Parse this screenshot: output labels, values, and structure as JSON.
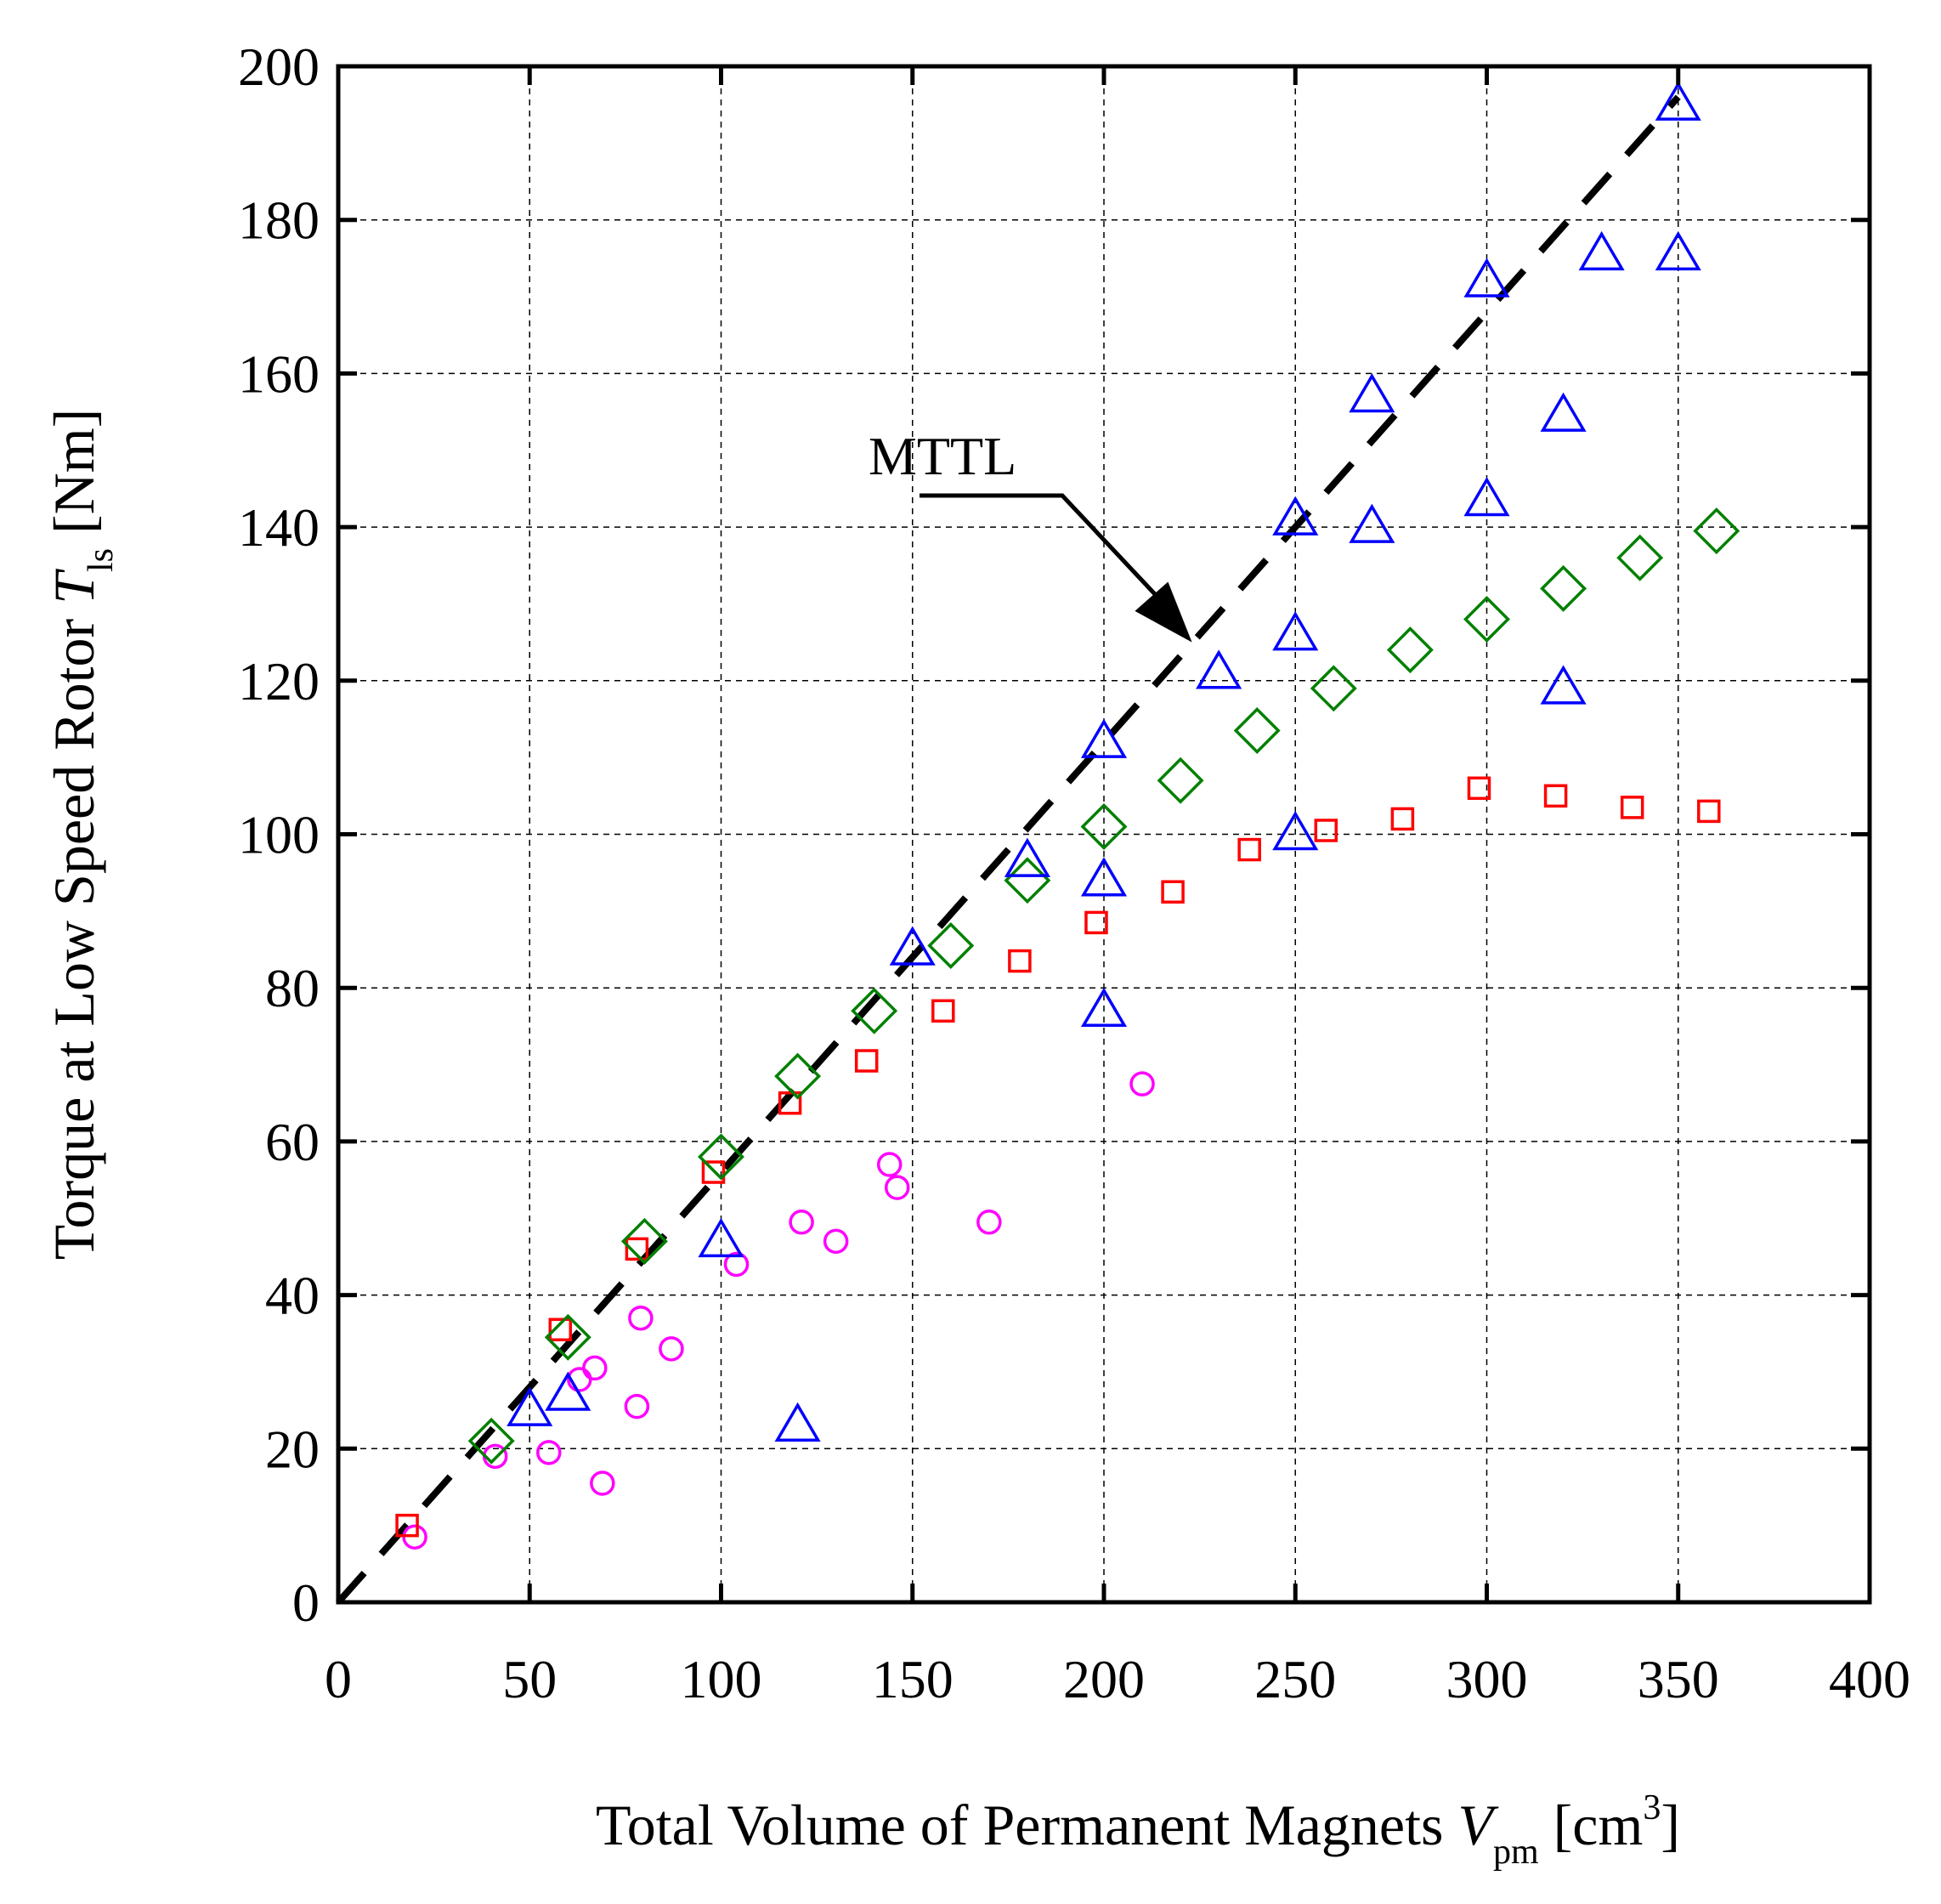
{
  "chart_data": {
    "type": "scatter",
    "xlabel": {
      "prefix": "Total Volume of Permanent Magnets ",
      "var": "V",
      "sub": "pm",
      "unit_open": " [cm",
      "sup": "3",
      "unit_close": "]"
    },
    "ylabel": {
      "prefix": "Torque at Low Speed Rotor ",
      "var": "T",
      "sub": "ls",
      "unit": " [Nm]"
    },
    "xlim": [
      0,
      400
    ],
    "ylim": [
      0,
      200
    ],
    "x_ticks": [
      0,
      50,
      100,
      150,
      200,
      250,
      300,
      350,
      400
    ],
    "y_ticks": [
      0,
      20,
      40,
      60,
      80,
      100,
      120,
      140,
      160,
      180,
      200
    ],
    "grid": true,
    "series": [
      {
        "name": "circles",
        "marker": "circle",
        "color": "#ff00ff",
        "points": [
          [
            20,
            8.5
          ],
          [
            41,
            19
          ],
          [
            55,
            19.5
          ],
          [
            63,
            29
          ],
          [
            67,
            30.5
          ],
          [
            69,
            15.5
          ],
          [
            78,
            25.5
          ],
          [
            79,
            37
          ],
          [
            87,
            33
          ],
          [
            104,
            44
          ],
          [
            121,
            49.5
          ],
          [
            130,
            47
          ],
          [
            144,
            57
          ],
          [
            146,
            54
          ],
          [
            170,
            49.5
          ],
          [
            210,
            67.5
          ]
        ]
      },
      {
        "name": "squares",
        "marker": "square",
        "color": "#ff0000",
        "points": [
          [
            18,
            10
          ],
          [
            58,
            35.5
          ],
          [
            78,
            46
          ],
          [
            98,
            56
          ],
          [
            118,
            65
          ],
          [
            138,
            70.5
          ],
          [
            158,
            77
          ],
          [
            178,
            83.5
          ],
          [
            198,
            88.5
          ],
          [
            218,
            92.5
          ],
          [
            238,
            98
          ],
          [
            258,
            100.5
          ],
          [
            278,
            102
          ],
          [
            298,
            106
          ],
          [
            318,
            105
          ],
          [
            338,
            103.5
          ],
          [
            358,
            103
          ]
        ]
      },
      {
        "name": "diamonds",
        "marker": "diamond",
        "color": "#008000",
        "points": [
          [
            40,
            21
          ],
          [
            60,
            34.5
          ],
          [
            80,
            47
          ],
          [
            100,
            58
          ],
          [
            120,
            68.5
          ],
          [
            140,
            77
          ],
          [
            160,
            85.5
          ],
          [
            180,
            94
          ],
          [
            200,
            101
          ],
          [
            220,
            107
          ],
          [
            240,
            113.5
          ],
          [
            260,
            119
          ],
          [
            280,
            124
          ],
          [
            300,
            128
          ],
          [
            320,
            132
          ],
          [
            340,
            136
          ],
          [
            360,
            139.5
          ]
        ]
      },
      {
        "name": "triangles",
        "marker": "triangle",
        "color": "#0000ff",
        "points": [
          [
            50,
            25
          ],
          [
            60,
            27
          ],
          [
            100,
            47
          ],
          [
            120,
            23
          ],
          [
            150,
            85
          ],
          [
            180,
            96.5
          ],
          [
            200,
            112
          ],
          [
            200,
            94
          ],
          [
            200,
            77
          ],
          [
            230,
            121
          ],
          [
            250,
            141
          ],
          [
            250,
            126
          ],
          [
            250,
            100
          ],
          [
            270,
            157
          ],
          [
            270,
            140
          ],
          [
            300,
            172
          ],
          [
            300,
            143.5
          ],
          [
            320,
            154.5
          ],
          [
            320,
            119
          ],
          [
            330,
            175.5
          ],
          [
            350,
            195
          ],
          [
            350,
            175.5
          ]
        ]
      }
    ],
    "reference_line": {
      "name": "MTTL",
      "style": "dashed",
      "color": "#000000",
      "points": [
        [
          0,
          0
        ],
        [
          350,
          196
        ]
      ]
    },
    "annotation": {
      "text": "MTTL",
      "target": [
        223,
        125
      ]
    }
  }
}
